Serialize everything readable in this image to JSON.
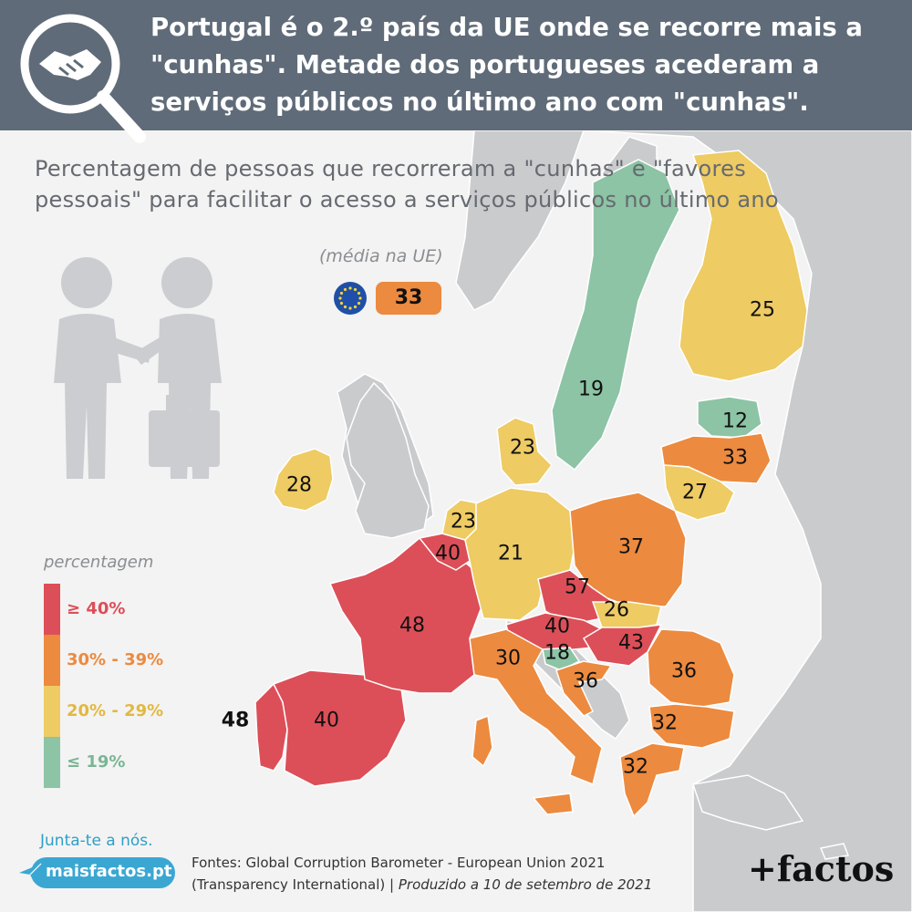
{
  "header": {
    "title": "Portugal é o 2.º país da UE onde se recorre mais a \"cunhas\". Metade dos portugueses acederam a serviços públicos no último ano com \"cunhas\"."
  },
  "subtitle": "Percentagem de pessoas que recorreram a \"cunhas\" e \"favores pessoais\" para facilitar o acesso a serviços públicos no último ano",
  "eu_average": {
    "label": "(média na UE)",
    "value": "33"
  },
  "legend": {
    "title": "percentagem",
    "items": [
      {
        "label": "≥ 40%",
        "color": "#dc4f58"
      },
      {
        "label": "30% - 39%",
        "color": "#ec8a3f"
      },
      {
        "label": "20% - 29%",
        "color": "#eecb63"
      },
      {
        "label": "≤ 19%",
        "color": "#8cc4a5"
      }
    ]
  },
  "countries": [
    {
      "name": "Portugal",
      "value": "48"
    },
    {
      "name": "Spain",
      "value": "40"
    },
    {
      "name": "France",
      "value": "48"
    },
    {
      "name": "Belgium",
      "value": "40"
    },
    {
      "name": "Netherlands",
      "value": "23"
    },
    {
      "name": "Germany",
      "value": "21"
    },
    {
      "name": "Denmark",
      "value": "23"
    },
    {
      "name": "Ireland",
      "value": "28"
    },
    {
      "name": "Sweden",
      "value": "19"
    },
    {
      "name": "Finland",
      "value": "25"
    },
    {
      "name": "Estonia",
      "value": "12"
    },
    {
      "name": "Latvia",
      "value": "33"
    },
    {
      "name": "Lithuania",
      "value": "27"
    },
    {
      "name": "Poland",
      "value": "37"
    },
    {
      "name": "Czechia",
      "value": "57"
    },
    {
      "name": "Slovakia",
      "value": "26"
    },
    {
      "name": "Austria",
      "value": "40"
    },
    {
      "name": "Hungary",
      "value": "43"
    },
    {
      "name": "Slovenia",
      "value": "18"
    },
    {
      "name": "Croatia",
      "value": "36"
    },
    {
      "name": "Italy",
      "value": "30"
    },
    {
      "name": "Romania",
      "value": "36"
    },
    {
      "name": "Bulgaria",
      "value": "32"
    },
    {
      "name": "Greece",
      "value": "32"
    }
  ],
  "footer": {
    "join_us": "Junta-te a nós.",
    "site": "maisfactos.pt",
    "sources_line1": "Fontes: Global Corruption Barometer - European Union 2021",
    "sources_line2a": "(Transparency International)",
    "sources_sep": "|",
    "sources_line2b": "Produzido a 10 de setembro de 2021",
    "brand": "+factos"
  },
  "colors": {
    "header_bg": "#5f6b78",
    "red": "#dc4f58",
    "orange": "#ec8a3f",
    "yellow": "#eecb63",
    "green": "#8cc4a5",
    "non_eu": "#c9cbcd",
    "sea": "#f3f3f3"
  }
}
